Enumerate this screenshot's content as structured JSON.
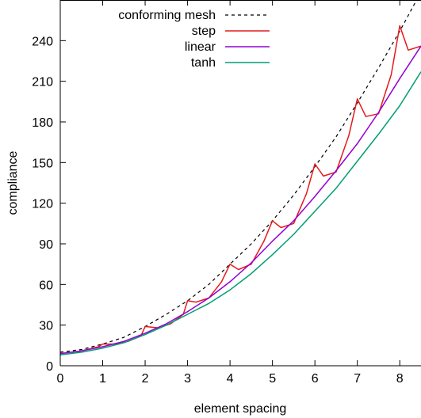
{
  "chart_data": {
    "type": "line",
    "xlabel": "element spacing",
    "ylabel": "compliance",
    "xlim": [
      0,
      8.5
    ],
    "ylim": [
      0,
      270
    ],
    "xticks": [
      0,
      1,
      2,
      3,
      4,
      5,
      6,
      7,
      8
    ],
    "yticks": [
      0,
      30,
      60,
      90,
      120,
      150,
      180,
      210,
      240
    ],
    "grid": false,
    "legend_position": "top-left",
    "series": [
      {
        "name": "conforming mesh",
        "color": "#000000",
        "style": "dashed",
        "x": [
          0,
          0.5,
          1,
          1.5,
          2,
          2.5,
          3,
          3.5,
          4,
          4.5,
          5,
          5.5,
          6,
          6.5,
          7,
          7.5,
          8,
          8.5
        ],
        "y": [
          10,
          12,
          16,
          21,
          29,
          38,
          48,
          60,
          75,
          90,
          107,
          126,
          147,
          169,
          194,
          220,
          247,
          276
        ]
      },
      {
        "name": "step",
        "color": "#e41a1c",
        "style": "solid",
        "x": [
          0,
          0.5,
          0.9,
          1.0,
          1.3,
          1.6,
          1.9,
          2.0,
          2.3,
          2.6,
          2.9,
          3.0,
          3.2,
          3.5,
          3.8,
          4.0,
          4.2,
          4.5,
          4.8,
          5.0,
          5.2,
          5.5,
          5.8,
          6.0,
          6.2,
          6.5,
          6.8,
          7.0,
          7.2,
          7.5,
          7.8,
          8.0,
          8.2,
          8.5
        ],
        "y": [
          9,
          11,
          14,
          16,
          16,
          18,
          22,
          29,
          28,
          31,
          38,
          48,
          47,
          50,
          62,
          75,
          71,
          75,
          92,
          107,
          102,
          105,
          127,
          149,
          140,
          143,
          170,
          197,
          184,
          186,
          215,
          251,
          233,
          236
        ]
      },
      {
        "name": "linear",
        "color": "#9400d3",
        "style": "solid",
        "x": [
          0,
          0.5,
          1,
          1.5,
          2,
          2.5,
          3,
          3.5,
          4,
          4.5,
          5,
          5.5,
          6,
          6.5,
          7,
          7.5,
          8,
          8.5
        ],
        "y": [
          9,
          11,
          14,
          18,
          24,
          31,
          40,
          50,
          62,
          76,
          92,
          107,
          125,
          144,
          164,
          187,
          212,
          236
        ]
      },
      {
        "name": "tanh",
        "color": "#009e73",
        "style": "solid",
        "x": [
          0,
          0.5,
          1,
          1.5,
          2,
          2.5,
          3,
          3.5,
          4,
          4.5,
          5,
          5.5,
          6,
          6.5,
          7,
          7.5,
          8,
          8.5
        ],
        "y": [
          8,
          10,
          13,
          17,
          23,
          30,
          38,
          46,
          56,
          68,
          82,
          97,
          114,
          131,
          151,
          171,
          192,
          217
        ]
      }
    ]
  }
}
